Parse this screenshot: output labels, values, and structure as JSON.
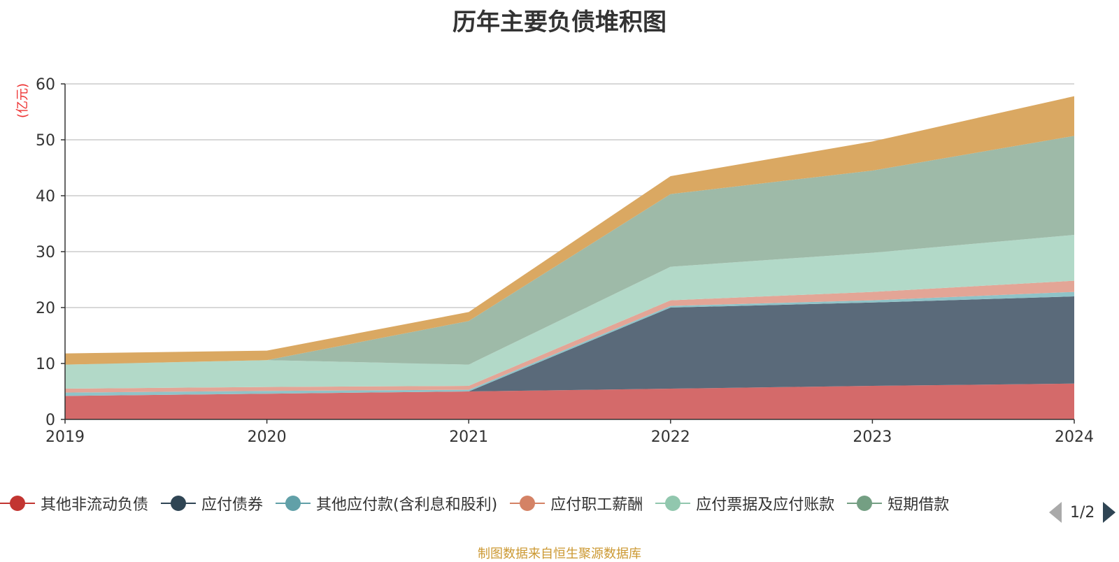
{
  "chart_data": {
    "type": "area",
    "title": "历年主要负债堆积图",
    "ylabel": "(亿元)",
    "x": [
      "2019",
      "2020",
      "2021",
      "2022",
      "2023",
      "2024"
    ],
    "ylim": [
      0,
      60
    ],
    "yticks": [
      0,
      10,
      20,
      30,
      40,
      50,
      60
    ],
    "stacked": true,
    "grid": true,
    "legend_position": "bottom",
    "series": [
      {
        "name": "其他非流动负债",
        "color": "#d46a6a",
        "values": [
          4.2,
          4.6,
          5.0,
          5.5,
          6.0,
          6.4
        ]
      },
      {
        "name": "应付债券",
        "color": "#5a6a7a",
        "values": [
          0,
          0,
          0,
          14.5,
          14.9,
          15.6
        ]
      },
      {
        "name": "其他应付款(含利息和股利)",
        "color": "#8fc3c8",
        "values": [
          0.6,
          0.5,
          0.3,
          0.3,
          0.4,
          0.8
        ]
      },
      {
        "name": "应付职工薪酬",
        "color": "#e3a596",
        "values": [
          0.7,
          0.7,
          0.7,
          1.0,
          1.5,
          2.0
        ]
      },
      {
        "name": "应付票据及应付账款",
        "color": "#b2d9c8",
        "values": [
          4.3,
          4.8,
          3.8,
          6.0,
          7.0,
          8.2
        ]
      },
      {
        "name": "短期借款",
        "color": "#9ebaa8",
        "values": [
          0,
          0,
          7.8,
          13.0,
          14.7,
          17.7
        ]
      },
      {
        "name": "",
        "color": "#daa862",
        "values": [
          2.0,
          1.7,
          1.6,
          3.2,
          5.2,
          7.1
        ]
      }
    ]
  },
  "legend": {
    "items": [
      {
        "label": "其他非流动负债",
        "color": "#c23531"
      },
      {
        "label": "应付债券",
        "color": "#2f4554"
      },
      {
        "label": "其他应付款(含利息和股利)",
        "color": "#61a0a8"
      },
      {
        "label": "应付职工薪酬",
        "color": "#d48265"
      },
      {
        "label": "应付票据及应付账款",
        "color": "#91c7ae"
      },
      {
        "label": "短期借款",
        "color": "#749f83"
      }
    ],
    "page_text": "1/2"
  },
  "footer": {
    "source": "制图数据来自恒生聚源数据库"
  }
}
